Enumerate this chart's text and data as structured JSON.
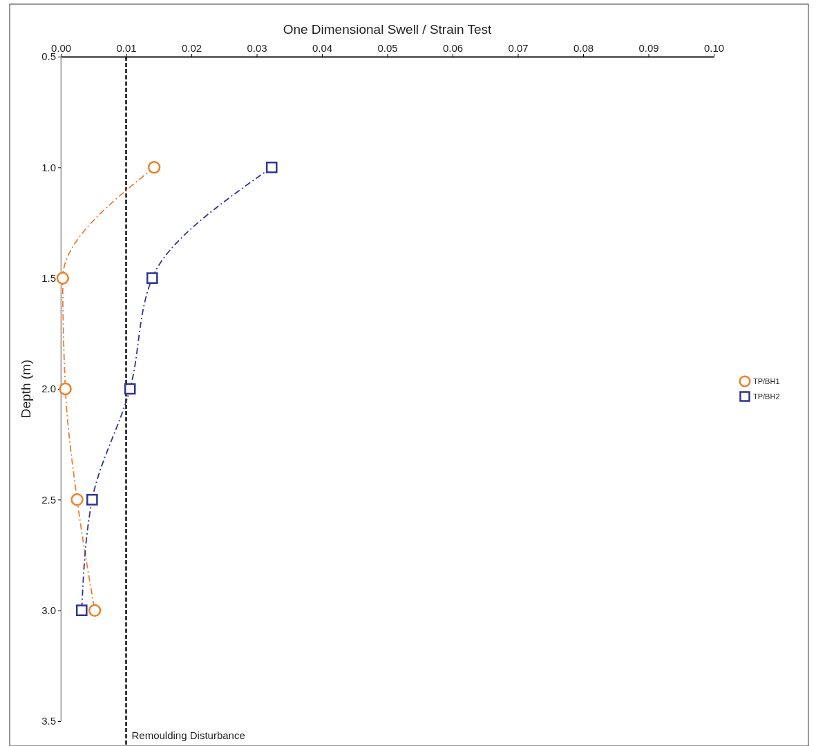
{
  "chart_data": {
    "type": "line",
    "xlabel": "One Dimensional Swell / Strain Test",
    "ylabel": "Depth (m)",
    "xlim": [
      0,
      0.1
    ],
    "xticks": [
      {
        "value": 0,
        "label": "0.00"
      },
      {
        "value": 0.01,
        "label": "0.01"
      },
      {
        "value": 0.02,
        "label": "0.02"
      },
      {
        "value": 0.03,
        "label": "0.03"
      },
      {
        "value": 0.04,
        "label": "0.04"
      },
      {
        "value": 0.05,
        "label": "0.05"
      },
      {
        "value": 0.06,
        "label": "0.06"
      },
      {
        "value": 0.07,
        "label": "0.07"
      },
      {
        "value": 0.08,
        "label": "0.08"
      },
      {
        "value": 0.09,
        "label": "0.09"
      },
      {
        "value": 0.1,
        "label": "0.10"
      }
    ],
    "ylim": [
      3.5,
      0.5
    ],
    "yticks": [
      {
        "value": 0.5,
        "label": "0.5"
      },
      {
        "value": 1,
        "label": "1.0"
      },
      {
        "value": 1.5,
        "label": "1.5"
      },
      {
        "value": 2,
        "label": "2.0"
      },
      {
        "value": 2.5,
        "label": "2.5"
      },
      {
        "value": 3,
        "label": "3.0"
      },
      {
        "value": 3.5,
        "label": "3.5"
      }
    ],
    "grid": false,
    "legend": "right",
    "line_style": "dashed",
    "series": [
      {
        "name": "TP/BH1",
        "color": "#f07f2a",
        "marker": "circle",
        "x": [
          0.0143,
          0.0003,
          0.0007,
          0.0025,
          0.0052
        ],
        "values": [
          1,
          1.5,
          2,
          2.5,
          3
        ]
      },
      {
        "name": "TP/BH2",
        "color": "#2e3592",
        "marker": "square",
        "x": [
          0.0323,
          0.014,
          0.0106,
          0.0048,
          0.0032
        ],
        "values": [
          1,
          1.5,
          2,
          2.5,
          3
        ]
      }
    ],
    "ref_lines": [
      {
        "axis": "x",
        "value": 0.01,
        "label": "Remoulding Disturbance",
        "color": "#111111",
        "line_style": "dashed"
      }
    ]
  }
}
